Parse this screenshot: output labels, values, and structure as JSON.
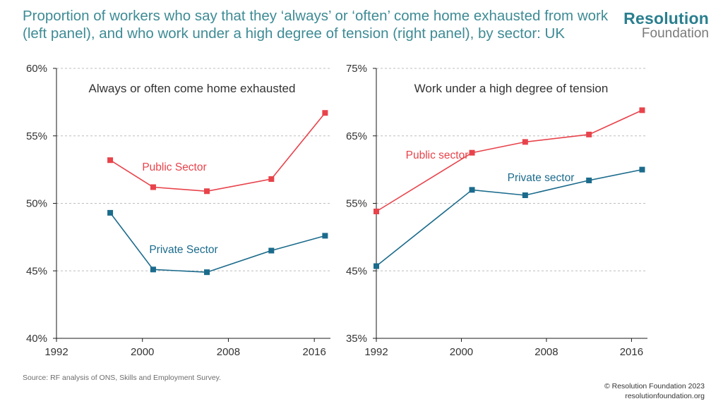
{
  "title": "Proportion of workers who say that they ‘always’ or ‘often’ come home exhausted from work (left panel), and who work under a high degree of tension (right panel), by sector: UK",
  "logo": {
    "line1": "Resolution",
    "line2": "Foundation"
  },
  "source": "Source: RF analysis of ONS, Skills and Employment Survey.",
  "copyright": {
    "line1": "© Resolution Foundation 2023",
    "line2": "resolutionfoundation.org"
  },
  "colors": {
    "public": "#e8434b",
    "private": "#1b6b8c",
    "axis": "#1a1a1a",
    "grid": "#bdbdbd",
    "title": "#3e8b95"
  },
  "chart_data": [
    {
      "type": "line",
      "title": "Always or often come home exhausted",
      "xlim": [
        1992,
        2017.5
      ],
      "ylim": [
        40,
        60
      ],
      "x_ticks": [
        1992,
        2000,
        2008,
        2016
      ],
      "x_tick_labels": [
        "1992",
        "2000",
        "2008",
        "2016"
      ],
      "y_ticks": [
        40,
        45,
        50,
        55,
        60
      ],
      "y_tick_labels": [
        "40%",
        "45%",
        "50%",
        "55%",
        "60%"
      ],
      "grid": true,
      "series": [
        {
          "name": "Public Sector",
          "key": "public",
          "x": [
            1997,
            2001,
            2006,
            2012,
            2017
          ],
          "y": [
            53.2,
            51.2,
            50.9,
            51.8,
            56.7
          ]
        },
        {
          "name": "Private Sector",
          "key": "private",
          "x": [
            1997,
            2001,
            2006,
            2012,
            2017
          ],
          "y": [
            49.3,
            45.1,
            44.9,
            46.5,
            47.6
          ]
        }
      ]
    },
    {
      "type": "line",
      "title": "Work under a high degree of tension",
      "xlim": [
        1992,
        2017.5
      ],
      "ylim": [
        35,
        75
      ],
      "x_ticks": [
        1992,
        2000,
        2008,
        2016
      ],
      "x_tick_labels": [
        "1992",
        "2000",
        "2008",
        "2016"
      ],
      "y_ticks": [
        35,
        45,
        55,
        65,
        75
      ],
      "y_tick_labels": [
        "35%",
        "45%",
        "55%",
        "65%",
        "75%"
      ],
      "grid": true,
      "series": [
        {
          "name": "Public sector",
          "key": "public",
          "x": [
            1992,
            2001,
            2006,
            2012,
            2017
          ],
          "y": [
            53.8,
            62.5,
            64.1,
            65.2,
            68.8
          ]
        },
        {
          "name": "Private sector",
          "key": "private",
          "x": [
            1992,
            2001,
            2006,
            2012,
            2017
          ],
          "y": [
            45.7,
            57.0,
            56.2,
            58.4,
            60.0
          ]
        }
      ]
    }
  ]
}
